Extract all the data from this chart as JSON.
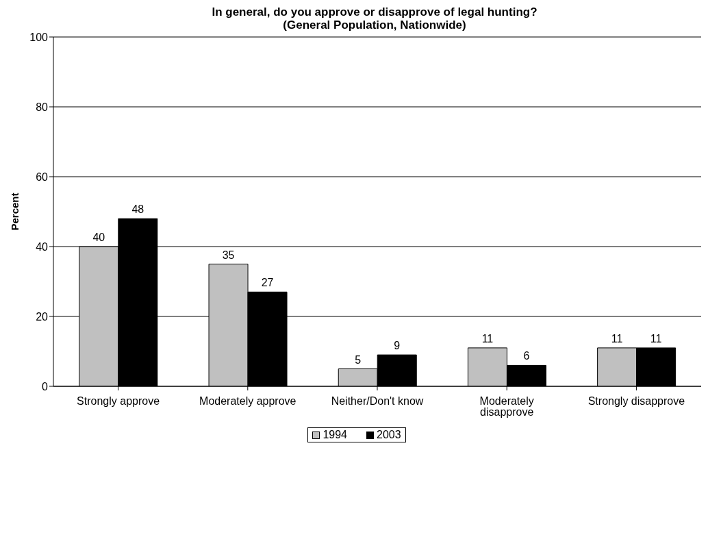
{
  "chart_data": {
    "type": "bar",
    "title": "In general, do you approve or disapprove of legal hunting?",
    "subtitle": "(General Population, Nationwide)",
    "ylabel": "Percent",
    "categories": [
      "Strongly approve",
      "Moderately approve",
      "Neither/Don't know",
      "Moderately disapprove",
      "Strongly disapprove"
    ],
    "series": [
      {
        "name": "1994",
        "color": "#c0c0c0",
        "values": [
          40,
          35,
          5,
          11,
          11
        ]
      },
      {
        "name": "2003",
        "color": "#000000",
        "values": [
          48,
          27,
          9,
          6,
          11
        ]
      }
    ],
    "ylim": [
      0,
      100
    ],
    "yticks": [
      0,
      20,
      40,
      60,
      80,
      100
    ],
    "grid": "y",
    "legend": "bottom",
    "data_labels": true
  }
}
